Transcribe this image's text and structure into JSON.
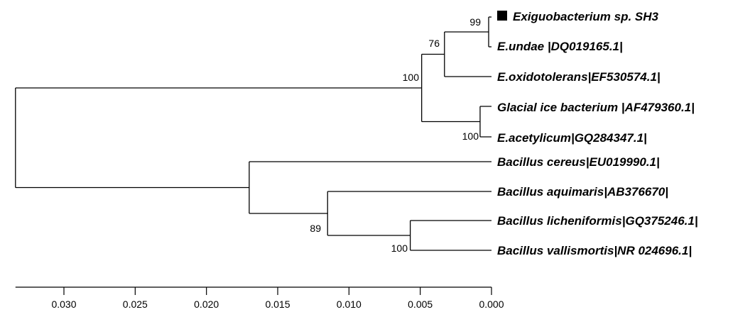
{
  "taxa": [
    "Exiguobacterium sp. SH3",
    "E.undae |DQ019165.1|",
    "E.oxidotolerans|EF530574.1|",
    "Glacial ice bacterium |AF479360.1|",
    "E.acetylicum|GQ284347.1|",
    "Bacillus cereus|EU019990.1|",
    "Bacillus aquimaris|AB376670|",
    "Bacillus licheniformis|GQ375246.1|",
    "Bacillus vallismortis|NR 024696.1|"
  ],
  "highlight_marker": {
    "taxon_index": 0,
    "shape": "filled-square",
    "color": "#000000"
  },
  "bootstrap": {
    "n_sh3_undae": "99",
    "n_exiguo_inner": "76",
    "n_exiguo": "100",
    "n_glacial_acetylicum": "100",
    "n_licheniformis_vallismortis": "100",
    "n_aquimaris_group": "89"
  },
  "scale_axis": {
    "ticks": [
      "0.030",
      "0.025",
      "0.020",
      "0.015",
      "0.010",
      "0.005",
      "0.000"
    ],
    "values": [
      0.03,
      0.025,
      0.02,
      0.015,
      0.01,
      0.005,
      0.0
    ],
    "direction": "reversed"
  },
  "node_heights": {
    "root": 0.0334,
    "n_exiguo": 0.0049,
    "n_exiguo_inner": 0.0033,
    "n_sh3_undae": 0.0002,
    "n_glacial_acetylicum": 0.0008,
    "n_bacillus": 0.017,
    "n_aquimaris_group": 0.0115,
    "n_licheniformis_vallismortis": 0.0057
  },
  "colors": {
    "line": "#000000",
    "text": "#000000",
    "background": "#ffffff"
  }
}
